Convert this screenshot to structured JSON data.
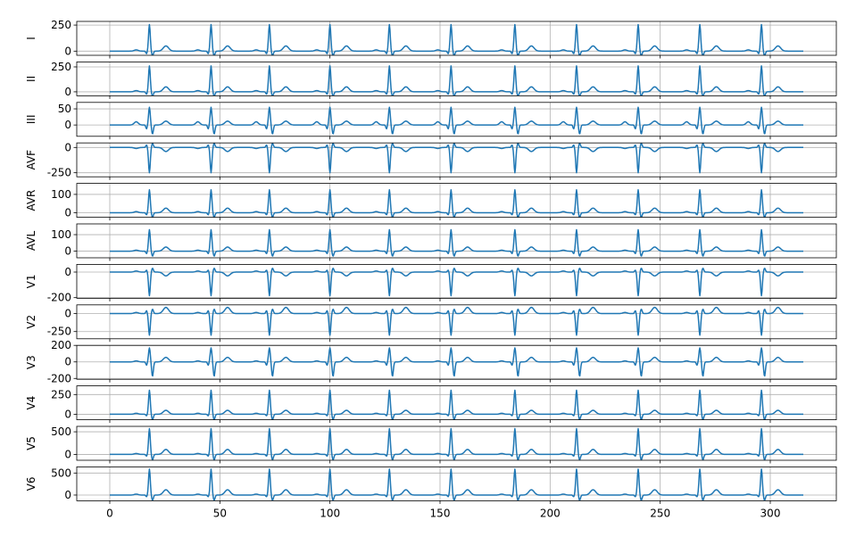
{
  "chart_data": {
    "type": "line",
    "layout": "12 vertically stacked panels sharing one x axis",
    "grid": true,
    "line_color": "#1f77b4",
    "axes_color": "#000000",
    "grid_color": "#b0b0b0",
    "xlim": [
      -15,
      330
    ],
    "x_ticks": [
      0,
      50,
      100,
      150,
      200,
      250,
      300
    ],
    "x_tick_labels": [
      "0",
      "50",
      "100",
      "150",
      "200",
      "250",
      "300"
    ],
    "beat_times": [
      18,
      46,
      72.5,
      100,
      127,
      155,
      184,
      212,
      240,
      268,
      296
    ],
    "sample_count": 315,
    "panels": [
      {
        "name": "I",
        "ylim": [
          -40,
          285
        ],
        "y_ticks": [
          0,
          250
        ],
        "y_tick_labels": [
          "0",
          "250"
        ],
        "wave": {
          "p": 12,
          "q": -25,
          "r": 255,
          "s": -45,
          "t": 50
        }
      },
      {
        "name": "II",
        "ylim": [
          -40,
          300
        ],
        "y_ticks": [
          0,
          250
        ],
        "y_tick_labels": [
          "0",
          "250"
        ],
        "wave": {
          "p": 12,
          "q": -25,
          "r": 260,
          "s": -45,
          "t": 50
        }
      },
      {
        "name": "III",
        "ylim": [
          -35,
          70
        ],
        "y_ticks": [
          0,
          50
        ],
        "y_tick_labels": [
          "0",
          "50"
        ],
        "wave": {
          "p": 10,
          "q": -12,
          "r": 55,
          "s": -28,
          "t": 12
        }
      },
      {
        "name": "AVF",
        "ylim": [
          -290,
          45
        ],
        "y_ticks": [
          -250,
          0
        ],
        "y_tick_labels": [
          "-250",
          "0"
        ],
        "wave": {
          "p": -10,
          "q": 25,
          "r": -250,
          "s": 40,
          "t": -40
        }
      },
      {
        "name": "AVR",
        "ylim": [
          -25,
          160
        ],
        "y_ticks": [
          0,
          100
        ],
        "y_tick_labels": [
          "0",
          "100"
        ],
        "wave": {
          "p": 6,
          "q": -12,
          "r": 125,
          "s": -25,
          "t": 25
        }
      },
      {
        "name": "AVL",
        "ylim": [
          -40,
          165
        ],
        "y_ticks": [
          0,
          100
        ],
        "y_tick_labels": [
          "0",
          "100"
        ],
        "wave": {
          "p": 6,
          "q": -15,
          "r": 130,
          "s": -30,
          "t": 25
        }
      },
      {
        "name": "V1",
        "ylim": [
          -205,
          60
        ],
        "y_ticks": [
          -200,
          0
        ],
        "y_tick_labels": [
          "-200",
          "0"
        ],
        "wave": {
          "p": 8,
          "q": 15,
          "r": -185,
          "s": 30,
          "t": -30
        }
      },
      {
        "name": "V2",
        "ylim": [
          -350,
          120
        ],
        "y_ticks": [
          -250,
          0
        ],
        "y_tick_labels": [
          "-250",
          "0"
        ],
        "wave": {
          "p": 15,
          "q": 40,
          "r": -300,
          "s": 60,
          "t": 85
        }
      },
      {
        "name": "V3",
        "ylim": [
          -210,
          200
        ],
        "y_ticks": [
          -200,
          0,
          200
        ],
        "y_tick_labels": [
          "-200",
          "0",
          "200"
        ],
        "wave": {
          "p": 12,
          "q": -40,
          "r": 170,
          "s": -175,
          "t": 55
        }
      },
      {
        "name": "V4",
        "ylim": [
          -70,
          360
        ],
        "y_ticks": [
          0,
          250
        ],
        "y_tick_labels": [
          "0",
          "250"
        ],
        "wave": {
          "p": 12,
          "q": -20,
          "r": 305,
          "s": -70,
          "t": 50
        }
      },
      {
        "name": "V5",
        "ylim": [
          -130,
          620
        ],
        "y_ticks": [
          0,
          500
        ],
        "y_tick_labels": [
          "0",
          "500"
        ],
        "wave": {
          "p": 20,
          "q": -40,
          "r": 570,
          "s": -120,
          "t": 110
        }
      },
      {
        "name": "V6",
        "ylim": [
          -130,
          640
        ],
        "y_ticks": [
          0,
          500
        ],
        "y_tick_labels": [
          "0",
          "500"
        ],
        "wave": {
          "p": 20,
          "q": -40,
          "r": 590,
          "s": -120,
          "t": 120
        }
      }
    ]
  }
}
